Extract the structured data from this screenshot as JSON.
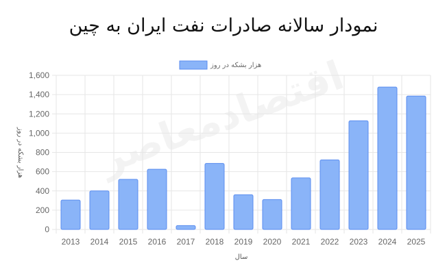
{
  "page": {
    "title": "نمودار سالانه صادرات نفت ایران به چین"
  },
  "watermark": "اقتصادمعاصر",
  "chart_data": {
    "type": "bar",
    "categories": [
      "2013",
      "2014",
      "2015",
      "2016",
      "2017",
      "2018",
      "2019",
      "2020",
      "2021",
      "2022",
      "2023",
      "2024",
      "2025"
    ],
    "series": [
      {
        "name": "هزار بشکه در روز",
        "values": [
          305,
          400,
          520,
          625,
          40,
          685,
          360,
          310,
          535,
          722,
          1128,
          1478,
          1385
        ]
      }
    ],
    "title": "",
    "xlabel": "سال",
    "ylabel": "هزار بشکه در روز",
    "ylim": [
      0,
      1600
    ],
    "yticks": [
      0,
      200,
      400,
      600,
      800,
      1000,
      1200,
      1400,
      1600
    ],
    "ytick_labels": [
      "0",
      "200",
      "400",
      "600",
      "800",
      "1,000",
      "1,200",
      "1,400",
      "1,600"
    ],
    "grid": true,
    "legend_position": "top-center",
    "colors": {
      "bar_fill": "#8ab4f8",
      "bar_stroke": "#5b8def"
    }
  }
}
